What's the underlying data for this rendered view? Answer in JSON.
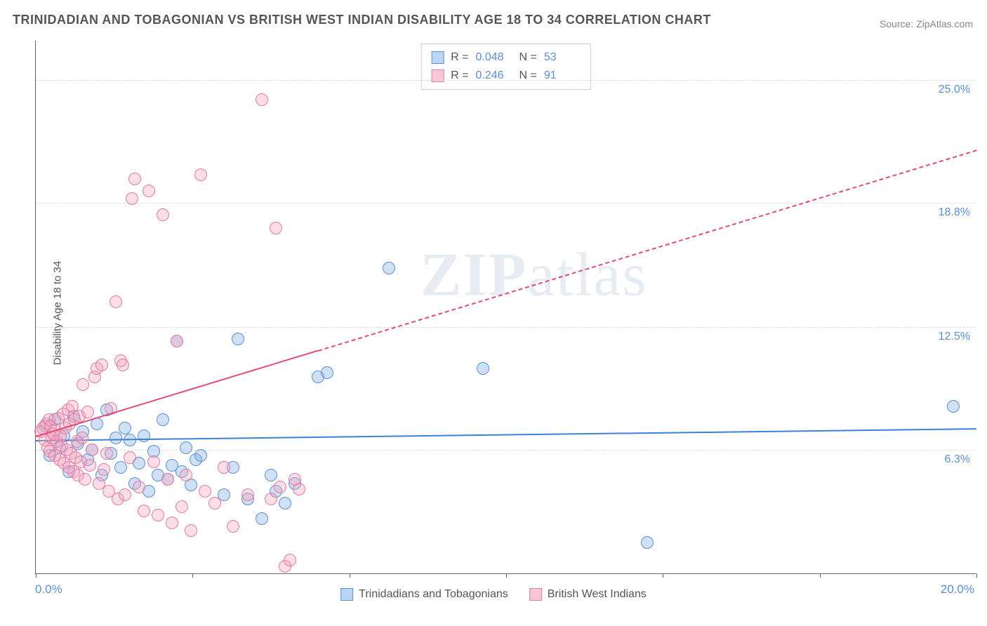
{
  "title": "TRINIDADIAN AND TOBAGONIAN VS BRITISH WEST INDIAN DISABILITY AGE 18 TO 34 CORRELATION CHART",
  "source": "Source: ZipAtlas.com",
  "ylabel": "Disability Age 18 to 34",
  "watermark": "ZIPatlas",
  "chart": {
    "type": "scatter",
    "background_color": "#ffffff",
    "grid_color": "#dddddd",
    "axis_color": "#666666",
    "tick_label_color": "#5b8fd6",
    "xlim": [
      0.0,
      20.0
    ],
    "ylim": [
      0.0,
      27.0
    ],
    "x_tick_positions": [
      0,
      3.33,
      6.67,
      10.0,
      13.33,
      16.67,
      20.0
    ],
    "x_axis_labels": {
      "min": "0.0%",
      "max": "20.0%"
    },
    "y_gridlines": [
      {
        "value": 6.3,
        "label": "6.3%"
      },
      {
        "value": 12.5,
        "label": "12.5%"
      },
      {
        "value": 18.8,
        "label": "18.8%"
      },
      {
        "value": 25.0,
        "label": "25.0%"
      }
    ],
    "marker_radius": 9,
    "marker_border_width": 1.5,
    "title_fontsize": 18,
    "label_fontsize": 15,
    "tick_fontsize": 16
  },
  "series": [
    {
      "id": "trinidadians",
      "label": "Trinidadians and Tobagonians",
      "fill_color": "rgba(120, 170, 230, 0.35)",
      "stroke_color": "#5b8fd6",
      "swatch_fill": "#bcd6f2",
      "swatch_border": "#5b8fd6",
      "R": "0.048",
      "N": "53",
      "trend": {
        "x1": 0.0,
        "y1": 6.8,
        "x2": 20.0,
        "y2": 7.4,
        "color": "#3b82d6",
        "width": 2,
        "dashed_after_x": null
      },
      "points": [
        [
          0.2,
          7.5
        ],
        [
          0.3,
          6.0
        ],
        [
          0.4,
          7.8
        ],
        [
          0.5,
          6.4
        ],
        [
          0.6,
          7.0
        ],
        [
          0.7,
          5.2
        ],
        [
          0.8,
          8.0
        ],
        [
          0.9,
          6.6
        ],
        [
          1.0,
          7.2
        ],
        [
          1.1,
          5.8
        ],
        [
          1.2,
          6.3
        ],
        [
          1.3,
          7.6
        ],
        [
          1.4,
          5.0
        ],
        [
          1.5,
          8.3
        ],
        [
          1.6,
          6.1
        ],
        [
          1.7,
          6.9
        ],
        [
          1.8,
          5.4
        ],
        [
          1.9,
          7.4
        ],
        [
          2.0,
          6.8
        ],
        [
          2.1,
          4.6
        ],
        [
          2.2,
          5.6
        ],
        [
          2.3,
          7.0
        ],
        [
          2.4,
          4.2
        ],
        [
          2.5,
          6.2
        ],
        [
          2.6,
          5.0
        ],
        [
          2.7,
          7.8
        ],
        [
          2.8,
          4.8
        ],
        [
          2.9,
          5.5
        ],
        [
          3.0,
          11.8
        ],
        [
          3.1,
          5.2
        ],
        [
          3.2,
          6.4
        ],
        [
          3.3,
          4.5
        ],
        [
          3.4,
          5.8
        ],
        [
          3.5,
          6.0
        ],
        [
          4.0,
          4.0
        ],
        [
          4.2,
          5.4
        ],
        [
          4.3,
          11.9
        ],
        [
          4.5,
          3.8
        ],
        [
          4.8,
          2.8
        ],
        [
          5.0,
          5.0
        ],
        [
          5.1,
          4.2
        ],
        [
          5.3,
          3.6
        ],
        [
          5.5,
          4.6
        ],
        [
          6.0,
          10.0
        ],
        [
          6.2,
          10.2
        ],
        [
          7.5,
          15.5
        ],
        [
          9.5,
          10.4
        ],
        [
          13.0,
          1.6
        ],
        [
          19.5,
          8.5
        ]
      ]
    },
    {
      "id": "british_west_indians",
      "label": "British West Indians",
      "fill_color": "rgba(245, 160, 185, 0.35)",
      "stroke_color": "#e57ba0",
      "swatch_fill": "#f6c7d6",
      "swatch_border": "#e57ba0",
      "R": "0.246",
      "N": "91",
      "trend": {
        "x1": 0.0,
        "y1": 7.0,
        "x2": 20.0,
        "y2": 21.5,
        "color": "#e14b7e",
        "width": 2,
        "dashed_after_x": 6.0
      },
      "points": [
        [
          0.1,
          7.2
        ],
        [
          0.15,
          7.4
        ],
        [
          0.2,
          6.8
        ],
        [
          0.22,
          7.6
        ],
        [
          0.25,
          6.4
        ],
        [
          0.28,
          7.8
        ],
        [
          0.3,
          6.2
        ],
        [
          0.32,
          7.5
        ],
        [
          0.35,
          6.9
        ],
        [
          0.38,
          7.1
        ],
        [
          0.4,
          6.0
        ],
        [
          0.42,
          7.3
        ],
        [
          0.45,
          6.7
        ],
        [
          0.48,
          7.9
        ],
        [
          0.5,
          5.8
        ],
        [
          0.52,
          7.0
        ],
        [
          0.55,
          6.5
        ],
        [
          0.58,
          8.1
        ],
        [
          0.6,
          5.6
        ],
        [
          0.62,
          7.4
        ],
        [
          0.65,
          6.3
        ],
        [
          0.68,
          8.3
        ],
        [
          0.7,
          5.4
        ],
        [
          0.72,
          7.6
        ],
        [
          0.75,
          6.1
        ],
        [
          0.78,
          8.5
        ],
        [
          0.8,
          5.2
        ],
        [
          0.82,
          7.8
        ],
        [
          0.85,
          5.9
        ],
        [
          0.88,
          6.7
        ],
        [
          0.9,
          5.0
        ],
        [
          0.92,
          8.0
        ],
        [
          0.95,
          5.7
        ],
        [
          0.98,
          6.9
        ],
        [
          1.0,
          9.6
        ],
        [
          1.05,
          4.8
        ],
        [
          1.1,
          8.2
        ],
        [
          1.15,
          5.5
        ],
        [
          1.2,
          6.3
        ],
        [
          1.25,
          10.0
        ],
        [
          1.3,
          10.4
        ],
        [
          1.35,
          4.6
        ],
        [
          1.4,
          10.6
        ],
        [
          1.45,
          5.3
        ],
        [
          1.5,
          6.1
        ],
        [
          1.55,
          4.2
        ],
        [
          1.6,
          8.4
        ],
        [
          1.7,
          13.8
        ],
        [
          1.75,
          3.8
        ],
        [
          1.8,
          10.8
        ],
        [
          1.85,
          10.6
        ],
        [
          1.9,
          4.0
        ],
        [
          2.0,
          5.9
        ],
        [
          2.05,
          19.0
        ],
        [
          2.1,
          20.0
        ],
        [
          2.2,
          4.4
        ],
        [
          2.3,
          3.2
        ],
        [
          2.4,
          19.4
        ],
        [
          2.5,
          5.7
        ],
        [
          2.6,
          3.0
        ],
        [
          2.7,
          18.2
        ],
        [
          2.8,
          4.8
        ],
        [
          2.9,
          2.6
        ],
        [
          3.0,
          11.8
        ],
        [
          3.1,
          3.4
        ],
        [
          3.2,
          5.0
        ],
        [
          3.3,
          2.2
        ],
        [
          3.5,
          20.2
        ],
        [
          3.6,
          4.2
        ],
        [
          3.8,
          3.6
        ],
        [
          4.0,
          5.4
        ],
        [
          4.2,
          2.4
        ],
        [
          4.5,
          4.0
        ],
        [
          4.8,
          24.0
        ],
        [
          5.0,
          3.8
        ],
        [
          5.1,
          17.5
        ],
        [
          5.2,
          4.4
        ],
        [
          5.3,
          0.4
        ],
        [
          5.4,
          0.7
        ],
        [
          5.5,
          4.8
        ],
        [
          5.6,
          4.3
        ]
      ]
    }
  ],
  "legend_stats_title": {
    "R_label": "R =",
    "N_label": "N ="
  },
  "bottom_legend_title": "series"
}
